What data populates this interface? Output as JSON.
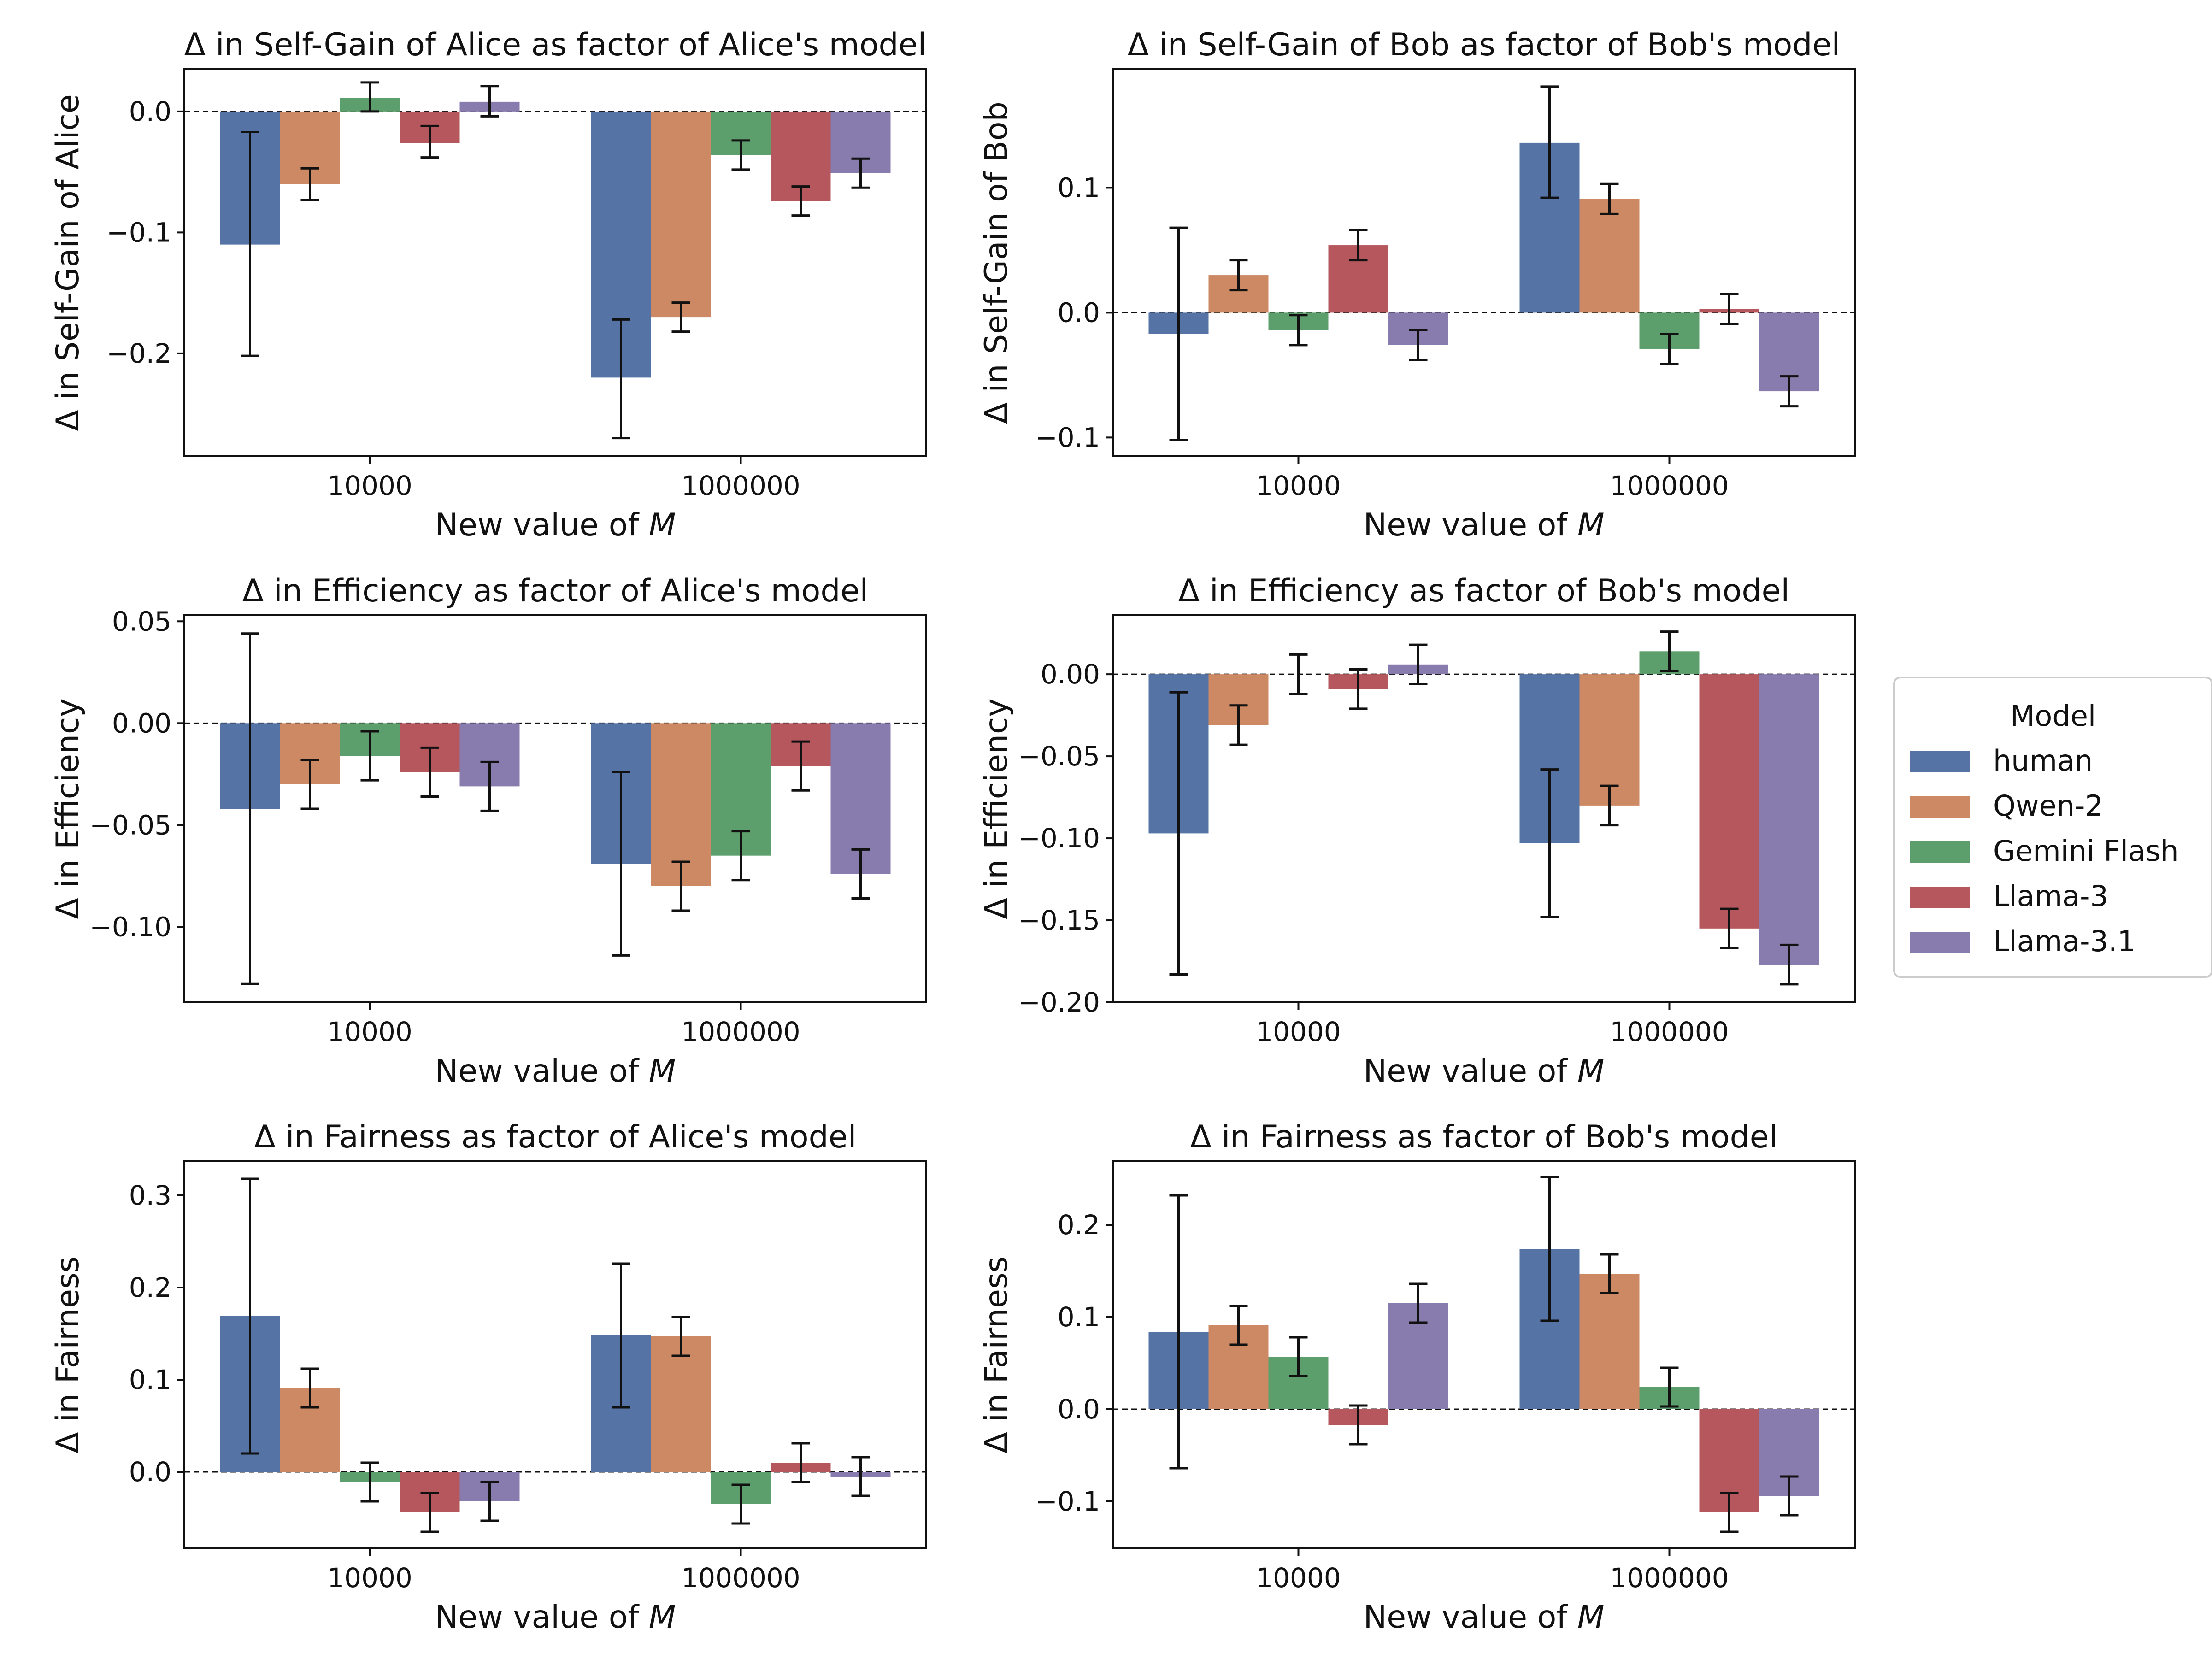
{
  "colors": {
    "human": "#5573a5",
    "Qwen-2": "#cc8963",
    "Gemini Flash": "#5d9f6c",
    "Llama-3": "#b5575d",
    "Llama-3.1": "#887bad"
  },
  "legend": {
    "title": "Model",
    "items": [
      "human",
      "Qwen-2",
      "Gemini Flash",
      "Llama-3",
      "Llama-3.1"
    ]
  },
  "chart_data": [
    {
      "type": "bar",
      "title": "Δ in Self-Gain of Alice as factor of Alice's model",
      "xlabel": "New value of M",
      "ylabel": "Δ in Self-Gain of Alice",
      "categories": [
        "10000",
        "1000000"
      ],
      "ylim": [
        -0.285,
        0.035
      ],
      "yticks": [
        -0.2,
        -0.1,
        0.0
      ],
      "ytick_labels": [
        "−0.2",
        "−0.1",
        "0.0"
      ],
      "series": [
        {
          "name": "human",
          "values": [
            -0.11,
            -0.22
          ],
          "err_low": [
            -0.202,
            -0.27
          ],
          "err_high": [
            -0.017,
            -0.172
          ]
        },
        {
          "name": "Qwen-2",
          "values": [
            -0.06,
            -0.17
          ],
          "err_low": [
            -0.073,
            -0.182
          ],
          "err_high": [
            -0.047,
            -0.158
          ]
        },
        {
          "name": "Gemini Flash",
          "values": [
            0.011,
            -0.036
          ],
          "err_low": [
            0.0,
            -0.048
          ],
          "err_high": [
            0.024,
            -0.024
          ]
        },
        {
          "name": "Llama-3",
          "values": [
            -0.026,
            -0.074
          ],
          "err_low": [
            -0.038,
            -0.086
          ],
          "err_high": [
            -0.012,
            -0.062
          ]
        },
        {
          "name": "Llama-3.1",
          "values": [
            0.008,
            -0.051
          ],
          "err_low": [
            -0.004,
            -0.063
          ],
          "err_high": [
            0.021,
            -0.039
          ]
        }
      ]
    },
    {
      "type": "bar",
      "title": "Δ in Self-Gain of Bob as factor of Bob's model",
      "xlabel": "New value of M",
      "ylabel": "Δ in Self-Gain of Bob",
      "categories": [
        "10000",
        "1000000"
      ],
      "ylim": [
        -0.115,
        0.195
      ],
      "yticks": [
        -0.1,
        0.0,
        0.1
      ],
      "ytick_labels": [
        "−0.1",
        "0.0",
        "0.1"
      ],
      "series": [
        {
          "name": "human",
          "values": [
            -0.017,
            0.136
          ],
          "err_low": [
            -0.102,
            0.092
          ],
          "err_high": [
            0.068,
            0.181
          ]
        },
        {
          "name": "Qwen-2",
          "values": [
            0.03,
            0.091
          ],
          "err_low": [
            0.018,
            0.079
          ],
          "err_high": [
            0.042,
            0.103
          ]
        },
        {
          "name": "Gemini Flash",
          "values": [
            -0.014,
            -0.029
          ],
          "err_low": [
            -0.026,
            -0.041
          ],
          "err_high": [
            -0.002,
            -0.017
          ]
        },
        {
          "name": "Llama-3",
          "values": [
            0.054,
            0.003
          ],
          "err_low": [
            0.042,
            -0.009
          ],
          "err_high": [
            0.066,
            0.015
          ]
        },
        {
          "name": "Llama-3.1",
          "values": [
            -0.026,
            -0.063
          ],
          "err_low": [
            -0.038,
            -0.075
          ],
          "err_high": [
            -0.014,
            -0.051
          ]
        }
      ]
    },
    {
      "type": "bar",
      "title": "Δ in Efficiency as factor of Alice's model",
      "xlabel": "New value of M",
      "ylabel": "Δ in Efficiency",
      "categories": [
        "10000",
        "1000000"
      ],
      "ylim": [
        -0.137,
        0.053
      ],
      "yticks": [
        -0.1,
        -0.05,
        0.0,
        0.05
      ],
      "ytick_labels": [
        "−0.10",
        "−0.05",
        "0.00",
        "0.05"
      ],
      "series": [
        {
          "name": "human",
          "values": [
            -0.042,
            -0.069
          ],
          "err_low": [
            -0.128,
            -0.114
          ],
          "err_high": [
            0.044,
            -0.024
          ]
        },
        {
          "name": "Qwen-2",
          "values": [
            -0.03,
            -0.08
          ],
          "err_low": [
            -0.042,
            -0.092
          ],
          "err_high": [
            -0.018,
            -0.068
          ]
        },
        {
          "name": "Gemini Flash",
          "values": [
            -0.016,
            -0.065
          ],
          "err_low": [
            -0.028,
            -0.077
          ],
          "err_high": [
            -0.004,
            -0.053
          ]
        },
        {
          "name": "Llama-3",
          "values": [
            -0.024,
            -0.021
          ],
          "err_low": [
            -0.036,
            -0.033
          ],
          "err_high": [
            -0.012,
            -0.009
          ]
        },
        {
          "name": "Llama-3.1",
          "values": [
            -0.031,
            -0.074
          ],
          "err_low": [
            -0.043,
            -0.086
          ],
          "err_high": [
            -0.019,
            -0.062
          ]
        }
      ]
    },
    {
      "type": "bar",
      "title": "Δ in Efficiency as factor of Bob's model",
      "xlabel": "New value of M",
      "ylabel": "Δ in Efficiency",
      "categories": [
        "10000",
        "1000000"
      ],
      "ylim": [
        -0.2,
        0.036
      ],
      "yticks": [
        -0.2,
        -0.15,
        -0.1,
        -0.05,
        0.0
      ],
      "ytick_labels": [
        "−0.20",
        "−0.15",
        "−0.10",
        "−0.05",
        "0.00"
      ],
      "series": [
        {
          "name": "human",
          "values": [
            -0.097,
            -0.103
          ],
          "err_low": [
            -0.183,
            -0.148
          ],
          "err_high": [
            -0.011,
            -0.058
          ]
        },
        {
          "name": "Qwen-2",
          "values": [
            -0.031,
            -0.08
          ],
          "err_low": [
            -0.043,
            -0.092
          ],
          "err_high": [
            -0.019,
            -0.068
          ]
        },
        {
          "name": "Gemini Flash",
          "values": [
            0.0,
            0.014
          ],
          "err_low": [
            -0.012,
            0.002
          ],
          "err_high": [
            0.012,
            0.026
          ]
        },
        {
          "name": "Llama-3",
          "values": [
            -0.009,
            -0.155
          ],
          "err_low": [
            -0.021,
            -0.167
          ],
          "err_high": [
            0.003,
            -0.143
          ]
        },
        {
          "name": "Llama-3.1",
          "values": [
            0.006,
            -0.177
          ],
          "err_low": [
            -0.006,
            -0.189
          ],
          "err_high": [
            0.018,
            -0.165
          ]
        }
      ]
    },
    {
      "type": "bar",
      "title": "Δ in Fairness as factor of Alice's model",
      "xlabel": "New value of M",
      "ylabel": "Δ in Fairness",
      "categories": [
        "10000",
        "1000000"
      ],
      "ylim": [
        -0.083,
        0.337
      ],
      "yticks": [
        0.0,
        0.1,
        0.2,
        0.3
      ],
      "ytick_labels": [
        "0.0",
        "0.1",
        "0.2",
        "0.3"
      ],
      "series": [
        {
          "name": "human",
          "values": [
            0.169,
            0.148
          ],
          "err_low": [
            0.02,
            0.07
          ],
          "err_high": [
            0.318,
            0.226
          ]
        },
        {
          "name": "Qwen-2",
          "values": [
            0.091,
            0.147
          ],
          "err_low": [
            0.07,
            0.126
          ],
          "err_high": [
            0.112,
            0.168
          ]
        },
        {
          "name": "Gemini Flash",
          "values": [
            -0.011,
            -0.035
          ],
          "err_low": [
            -0.032,
            -0.056
          ],
          "err_high": [
            0.01,
            -0.014
          ]
        },
        {
          "name": "Llama-3",
          "values": [
            -0.044,
            0.01
          ],
          "err_low": [
            -0.065,
            -0.011
          ],
          "err_high": [
            -0.023,
            0.031
          ]
        },
        {
          "name": "Llama-3.1",
          "values": [
            -0.032,
            -0.005
          ],
          "err_low": [
            -0.053,
            -0.026
          ],
          "err_high": [
            -0.011,
            0.016
          ]
        }
      ]
    },
    {
      "type": "bar",
      "title": "Δ in Fairness as factor of Bob's model",
      "xlabel": "New value of M",
      "ylabel": "Δ in Fairness",
      "categories": [
        "10000",
        "1000000"
      ],
      "ylim": [
        -0.151,
        0.269
      ],
      "yticks": [
        -0.1,
        0.0,
        0.1,
        0.2
      ],
      "ytick_labels": [
        "−0.1",
        "0.0",
        "0.1",
        "0.2"
      ],
      "series": [
        {
          "name": "human",
          "values": [
            0.084,
            0.174
          ],
          "err_low": [
            -0.064,
            0.096
          ],
          "err_high": [
            0.232,
            0.252
          ]
        },
        {
          "name": "Qwen-2",
          "values": [
            0.091,
            0.147
          ],
          "err_low": [
            0.07,
            0.126
          ],
          "err_high": [
            0.112,
            0.168
          ]
        },
        {
          "name": "Gemini Flash",
          "values": [
            0.057,
            0.024
          ],
          "err_low": [
            0.036,
            0.003
          ],
          "err_high": [
            0.078,
            0.045
          ]
        },
        {
          "name": "Llama-3",
          "values": [
            -0.017,
            -0.112
          ],
          "err_low": [
            -0.038,
            -0.133
          ],
          "err_high": [
            0.004,
            -0.091
          ]
        },
        {
          "name": "Llama-3.1",
          "values": [
            0.115,
            -0.094
          ],
          "err_low": [
            0.094,
            -0.115
          ],
          "err_high": [
            0.136,
            -0.073
          ]
        }
      ]
    }
  ]
}
